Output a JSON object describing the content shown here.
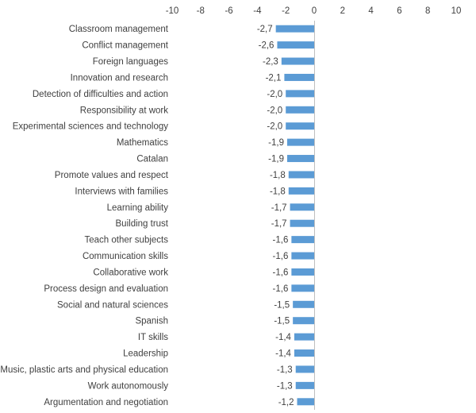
{
  "chart_data": {
    "type": "bar",
    "orientation": "horizontal",
    "xlim": [
      -10,
      10
    ],
    "x_ticks": [
      -10,
      -8,
      -6,
      -4,
      -2,
      0,
      2,
      4,
      6,
      8,
      10
    ],
    "x_axis_position": "top",
    "grid": false,
    "legend": "none",
    "bar_color": "#5b9bd5",
    "categories": [
      "Classroom management",
      "Conflict management",
      "Foreign languages",
      "Innovation and research",
      "Detection of difficulties and action",
      "Responsibility at work",
      "Experimental sciences and technology",
      "Mathematics",
      "Catalan",
      "Promote values and respect",
      "Interviews with families",
      "Learning ability",
      "Building trust",
      "Teach other subjects",
      "Communication skills",
      "Collaborative work",
      "Process design and evaluation",
      "Social and natural sciences",
      "Spanish",
      "IT skills",
      "Leadership",
      "Music, plastic arts and physical education",
      "Work autonomously",
      "Argumentation and negotiation"
    ],
    "values": [
      -2.7,
      -2.6,
      -2.3,
      -2.1,
      -2.0,
      -2.0,
      -2.0,
      -1.9,
      -1.9,
      -1.8,
      -1.8,
      -1.7,
      -1.7,
      -1.6,
      -1.6,
      -1.6,
      -1.6,
      -1.5,
      -1.5,
      -1.4,
      -1.4,
      -1.3,
      -1.3,
      -1.2
    ],
    "value_labels": [
      "-2,7",
      "-2,6",
      "-2,3",
      "-2,1",
      "-2,0",
      "-2,0",
      "-2,0",
      "-1,9",
      "-1,9",
      "-1,8",
      "-1,8",
      "-1,7",
      "-1,7",
      "-1,6",
      "-1,6",
      "-1,6",
      "-1,6",
      "-1,5",
      "-1,5",
      "-1,4",
      "-1,4",
      "-1,3",
      "-1,3",
      "-1,2"
    ]
  }
}
